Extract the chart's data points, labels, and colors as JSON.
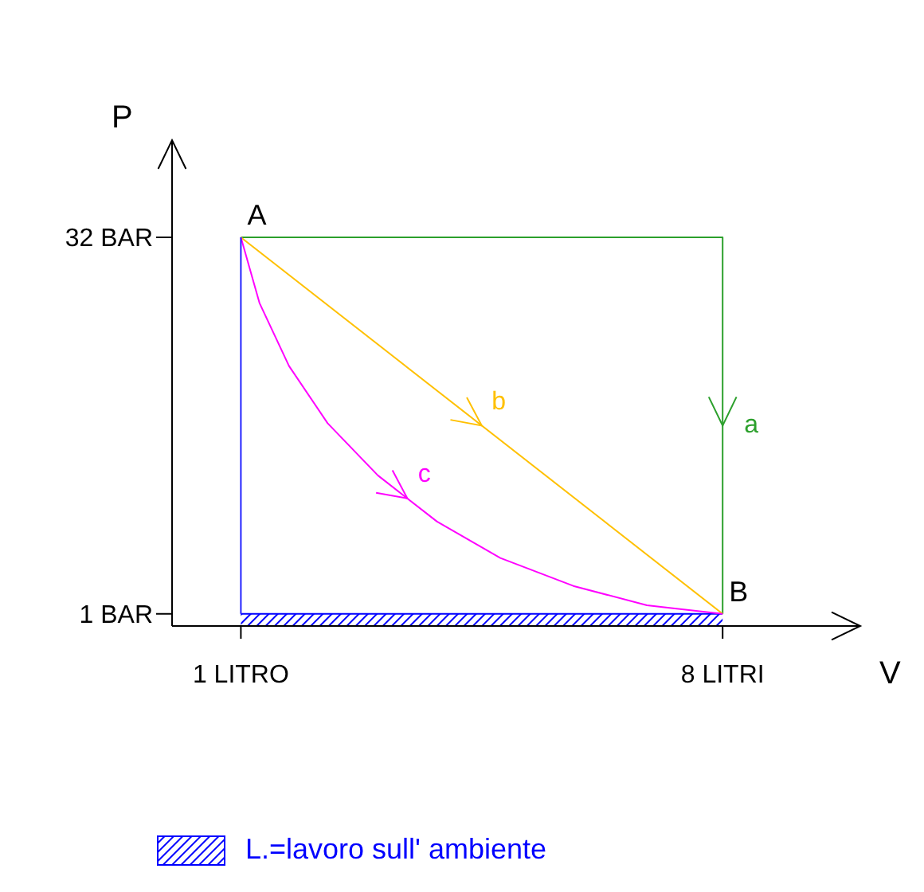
{
  "chart_data": {
    "type": "line",
    "xlabel": "V",
    "ylabel": "P",
    "xlim": [
      0,
      10
    ],
    "ylim": [
      0,
      40
    ],
    "xticks": [
      {
        "value": 1,
        "label": "1 LITRO"
      },
      {
        "value": 8,
        "label": "8 LITRI"
      }
    ],
    "yticks": [
      {
        "value": 1,
        "label": "1 BAR"
      },
      {
        "value": 32,
        "label": "32 BAR"
      }
    ],
    "grid": false,
    "legend": "bottom left",
    "marker": "none",
    "line_style": "solid",
    "annotations": [
      {
        "text": "A",
        "x": 1,
        "y": 32
      },
      {
        "text": "B",
        "x": 8,
        "y": 1
      }
    ],
    "series": [
      {
        "name": "a",
        "color": "#2ca02c",
        "x": [
          1,
          8,
          8
        ],
        "values": [
          32,
          32,
          1
        ]
      },
      {
        "name": "b",
        "color": "#ffc000",
        "x": [
          1,
          8
        ],
        "values": [
          32,
          1
        ]
      },
      {
        "name": "c",
        "color": "#ff00ff",
        "x": [
          1,
          1.27,
          1.7,
          2.26,
          2.99,
          3.85,
          4.77,
          5.83,
          6.9,
          8
        ],
        "values": [
          32,
          26.6,
          21.4,
          16.7,
          12.4,
          8.6,
          5.6,
          3.3,
          1.7,
          1
        ]
      },
      {
        "type": "area",
        "name": "L.=lavoro sull' ambiente",
        "color": "#0000ff",
        "x": [
          1,
          8
        ],
        "values": [
          1,
          1
        ]
      },
      {
        "color": "#2222ff",
        "x": [
          1,
          1
        ],
        "values": [
          1,
          32
        ]
      }
    ]
  }
}
